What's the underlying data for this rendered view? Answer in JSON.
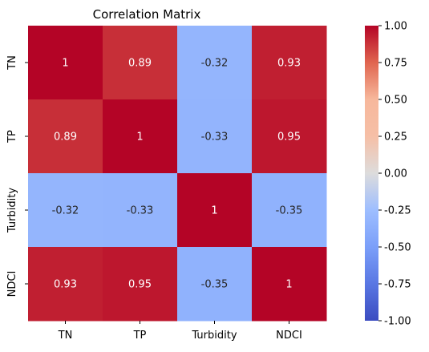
{
  "chart_data": {
    "type": "heatmap",
    "title": "Correlation Matrix",
    "xlabel": "",
    "ylabel": "",
    "x_categories": [
      "TN",
      "TP",
      "Turbidity",
      "NDCI"
    ],
    "y_categories": [
      "TN",
      "TP",
      "Turbidity",
      "NDCI"
    ],
    "values": [
      [
        1,
        0.89,
        -0.32,
        0.93
      ],
      [
        0.89,
        1,
        -0.33,
        0.95
      ],
      [
        -0.32,
        -0.33,
        1,
        -0.35
      ],
      [
        0.93,
        0.95,
        -0.35,
        1
      ]
    ],
    "value_labels": [
      [
        "1",
        "0.89",
        "-0.32",
        "0.93"
      ],
      [
        "0.89",
        "1",
        "-0.33",
        "0.95"
      ],
      [
        "-0.32",
        "-0.33",
        "1",
        "-0.35"
      ],
      [
        "0.93",
        "0.95",
        "-0.35",
        "1"
      ]
    ],
    "colormap": "coolwarm",
    "vmin": -1.0,
    "vmax": 1.0,
    "colorbar_ticks": [
      "1.00",
      "0.75",
      "0.50",
      "0.25",
      "0.00",
      "-0.25",
      "-0.50",
      "-0.75",
      "-1.00"
    ],
    "colorbar_tick_values": [
      1.0,
      0.75,
      0.5,
      0.25,
      0.0,
      -0.25,
      -0.5,
      -0.75,
      -1.0
    ],
    "grid": false,
    "legend": "colorbar-right"
  }
}
